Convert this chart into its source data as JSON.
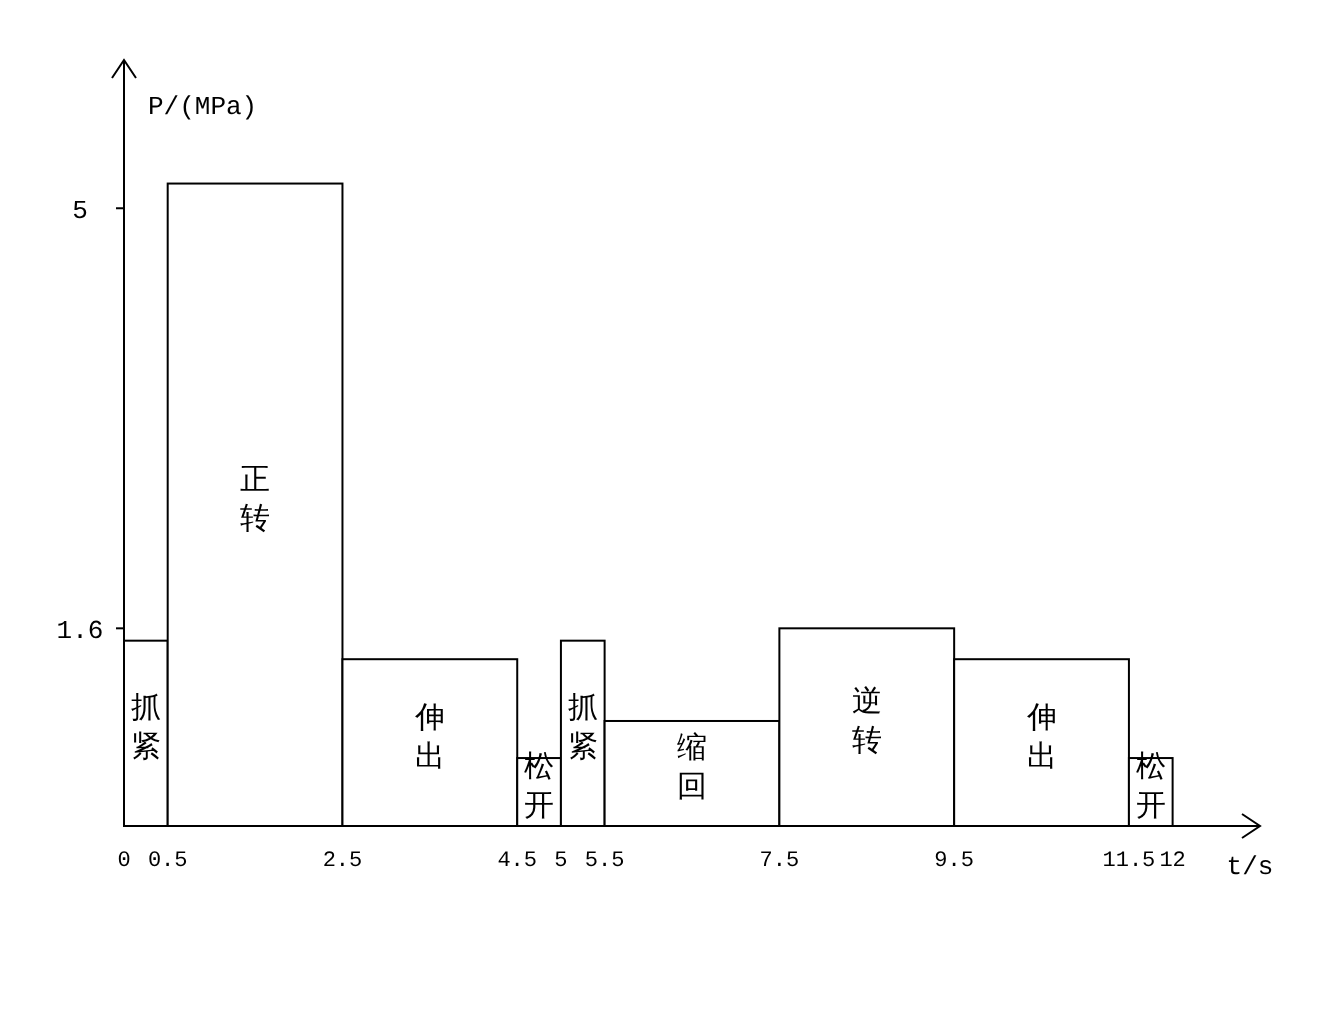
{
  "chart_data": {
    "type": "histogram",
    "xlabel": "t/s",
    "ylabel": "P/(MPa)",
    "ylim": [
      0,
      6.2
    ],
    "yticks": [
      1.6,
      5
    ],
    "bins": [
      0,
      0.5,
      2.5,
      4.5,
      5,
      5.5,
      7.5,
      9.5,
      11.5,
      12
    ],
    "values": [
      1.5,
      5.2,
      1.35,
      0.55,
      1.5,
      0.85,
      1.6,
      1.35,
      0.55
    ],
    "color": "#ffffff",
    "xlim": [
      0,
      13
    ],
    "xticks": [
      0,
      0.5,
      2.5,
      4.5,
      5,
      5.5,
      7.5,
      9.5,
      11.5,
      12
    ],
    "grid": false,
    "annotations": [
      "抓紧",
      "正转",
      "伸出",
      "松开",
      "抓紧",
      "缩回",
      "逆转",
      "伸出",
      "松开"
    ]
  }
}
